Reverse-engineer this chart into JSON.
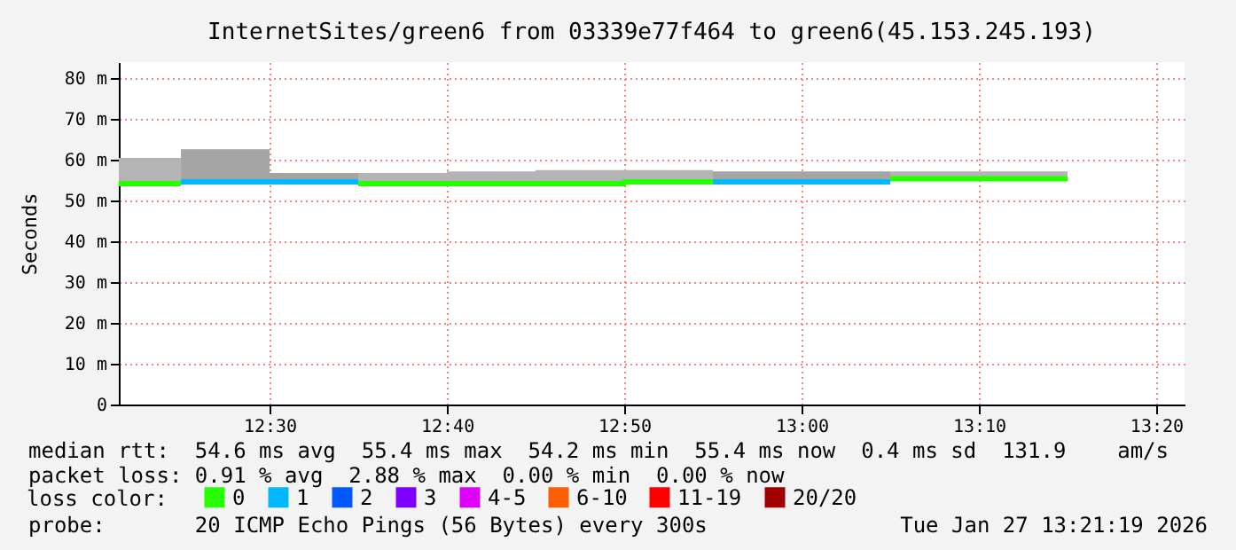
{
  "chart_data": {
    "type": "step",
    "title": "InternetSites/green6 from 03339e77f464 to green6(45.153.245.193)",
    "ylabel": "Seconds",
    "legend_title": "loss color:",
    "legend": "bottom",
    "grid": true,
    "xlim": [
      12.3583,
      13.36
    ],
    "xticks": [
      {
        "value": 12.5,
        "label": "12:30"
      },
      {
        "value": 12.6667,
        "label": "12:40"
      },
      {
        "value": 12.8333,
        "label": "12:50"
      },
      {
        "value": 13.0,
        "label": "13:00"
      },
      {
        "value": 13.1667,
        "label": "13:10"
      },
      {
        "value": 13.3333,
        "label": "13:20"
      }
    ],
    "ylim": [
      0,
      84
    ],
    "yticks": [
      0,
      {
        "value": 10,
        "label": "10 m"
      },
      {
        "value": 20,
        "label": "20 m"
      },
      {
        "value": 30,
        "label": "30 m"
      },
      {
        "value": 40,
        "label": "40 m"
      },
      {
        "value": 50,
        "label": "50 m"
      },
      {
        "value": 60,
        "label": "60 m"
      },
      {
        "value": 70,
        "label": "70 m"
      },
      {
        "value": 80,
        "label": "80 m"
      }
    ],
    "series": [
      {
        "name": "0",
        "color": "#26ff00",
        "x": [
          12.3583,
          12.4167,
          null,
          12.5833,
          12.6667,
          12.75,
          12.8333,
          12.9167,
          null,
          13.0833,
          13.1667,
          13.25
        ],
        "values": [
          54.2,
          54.2,
          null,
          54.2,
          54.2,
          54.2,
          54.6,
          54.6,
          null,
          55.4,
          55.4,
          55.4
        ],
        "lower": [
          54.2,
          54.2,
          null,
          54.2,
          54.2,
          54.2,
          54.6,
          54.6,
          null,
          55.0,
          55.0,
          55.0
        ],
        "upper": [
          60.5,
          60.5,
          null,
          56.8,
          57.2,
          57.5,
          57.5,
          57.5,
          null,
          57.2,
          57.2,
          57.2
        ]
      },
      {
        "name": "1",
        "color": "#00b8ff",
        "x": [
          12.4167,
          12.5,
          12.5833,
          null,
          12.9167,
          13.0,
          13.0833
        ],
        "values": [
          54.6,
          54.6,
          54.6,
          null,
          54.6,
          54.6,
          54.6
        ],
        "lower": [
          54.6,
          54.6,
          54.6,
          null,
          54.6,
          54.6,
          54.6
        ],
        "upper": [
          62.6,
          56.8,
          56.8,
          null,
          57.2,
          57.2,
          57.2
        ]
      },
      {
        "name": "2",
        "color": "#0059ff"
      },
      {
        "name": "3",
        "color": "#7e00ff"
      },
      {
        "name": "4-5",
        "color": "#dd00ff"
      },
      {
        "name": "6-10",
        "color": "#ff5e00"
      },
      {
        "name": "11-19",
        "color": "#ff0000"
      },
      {
        "name": "20/20",
        "color": "#a10000"
      }
    ],
    "annotations": [
      "median rtt:  54.6 ms avg  55.4 ms max  54.2 ms min  55.4 ms now  0.4 ms sd  131.9    am/s",
      "packet loss: 0.91 % avg  2.88 % max  0.00 % min  0.00 % now",
      "probe:       20 ICMP Echo Pings (56 Bytes) every 300s",
      "Tue Jan 27 13:21:19 2026"
    ]
  }
}
